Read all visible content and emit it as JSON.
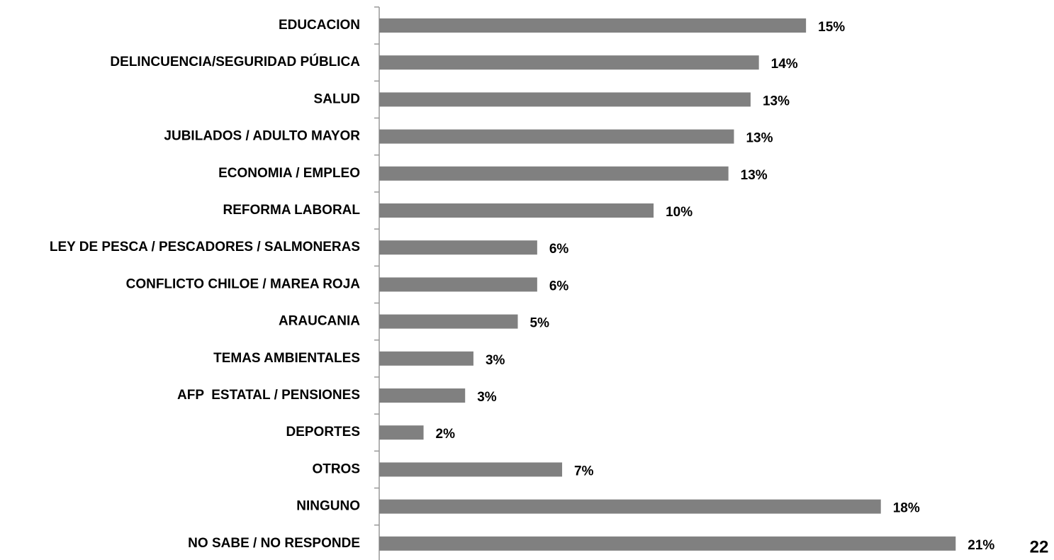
{
  "chart_data": {
    "type": "barh",
    "categories": [
      "EDUCACION",
      "DELINCUENCIA/SEGURIDAD PÚBLICA",
      "SALUD",
      "JUBILADOS / ADULTO MAYOR",
      "ECONOMIA / EMPLEO",
      "REFORMA LABORAL",
      "LEY DE PESCA / PESCADORES / SALMONERAS",
      "CONFLICTO CHILOE / MAREA ROJA",
      "ARAUCANIA",
      "TEMAS AMBIENTALES",
      "AFP  ESTATAL / PENSIONES",
      "DEPORTES",
      "OTROS",
      "NINGUNO",
      "NO SABE / NO RESPONDE"
    ],
    "values": [
      15.4,
      13.7,
      13.4,
      12.8,
      12.6,
      9.9,
      5.7,
      5.7,
      5.0,
      3.4,
      3.1,
      1.6,
      6.6,
      18.1,
      20.8
    ],
    "value_labels": [
      "15%",
      "14%",
      "13%",
      "13%",
      "13%",
      "10%",
      "6%",
      "6%",
      "5%",
      "3%",
      "3%",
      "2%",
      "7%",
      "18%",
      "21%"
    ],
    "color": "#808080",
    "xlim": [
      0,
      22
    ]
  },
  "page_number": "22"
}
